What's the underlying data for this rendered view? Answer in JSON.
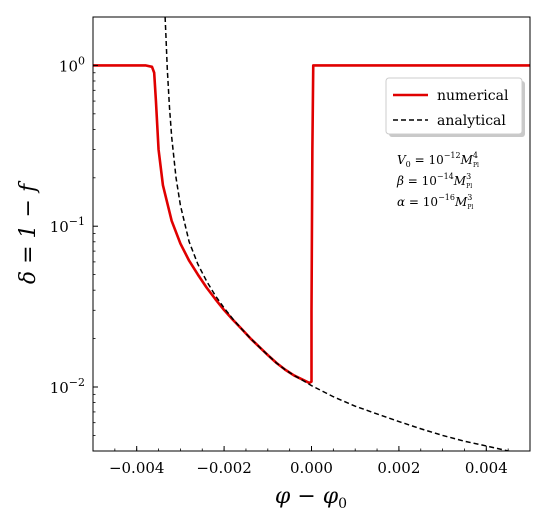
{
  "chart_data": {
    "type": "line",
    "xlabel": "φ − φ",
    "xlabel_sub": "0",
    "ylabel": "δ = 1 − f",
    "xlim": [
      -0.005,
      0.005
    ],
    "ylim": [
      0.004,
      2.0
    ],
    "yscale": "log",
    "x_ticks": [
      -0.004,
      -0.002,
      0.0,
      0.002,
      0.004
    ],
    "x_tick_labels": [
      "−0.004",
      "−0.002",
      "0.000",
      "0.002",
      "0.004"
    ],
    "y_ticks": [
      {
        "value": 1.0,
        "base": "10",
        "exp": "0"
      },
      {
        "value": 0.1,
        "base": "10",
        "exp": "−1"
      },
      {
        "value": 0.01,
        "base": "10",
        "exp": "−2"
      }
    ],
    "grid": false,
    "legend_position": "upper-right",
    "series": [
      {
        "name": "numerical",
        "color": "#e00000",
        "style": "solid",
        "points": [
          [
            -0.005,
            1.0
          ],
          [
            -0.0038,
            1.0
          ],
          [
            -0.00365,
            0.98
          ],
          [
            -0.0036,
            0.9
          ],
          [
            -0.00356,
            0.6
          ],
          [
            -0.0035,
            0.3
          ],
          [
            -0.0034,
            0.18
          ],
          [
            -0.0032,
            0.108
          ],
          [
            -0.003,
            0.078
          ],
          [
            -0.0028,
            0.061
          ],
          [
            -0.0026,
            0.05
          ],
          [
            -0.0024,
            0.0415
          ],
          [
            -0.0022,
            0.0352
          ],
          [
            -0.002,
            0.0301
          ],
          [
            -0.0018,
            0.0262
          ],
          [
            -0.0016,
            0.023
          ],
          [
            -0.0014,
            0.0201
          ],
          [
            -0.0012,
            0.0178
          ],
          [
            -0.001,
            0.0158
          ],
          [
            -0.0008,
            0.0141
          ],
          [
            -0.0006,
            0.0128
          ],
          [
            -0.0004,
            0.0118
          ],
          [
            -0.0002,
            0.0111
          ],
          [
            -5e-05,
            0.0106
          ],
          [
            0.0,
            0.0108
          ],
          [
            0.0,
            0.03
          ],
          [
            2e-05,
            0.3
          ],
          [
            4e-05,
            1.0
          ],
          [
            0.005,
            1.0
          ]
        ]
      },
      {
        "name": "analytical",
        "color": "#000000",
        "style": "dashed",
        "points": [
          [
            -0.00335,
            2.0
          ],
          [
            -0.00333,
            1.5
          ],
          [
            -0.0033,
            0.95
          ],
          [
            -0.00325,
            0.55
          ],
          [
            -0.0032,
            0.36
          ],
          [
            -0.0031,
            0.2
          ],
          [
            -0.003,
            0.135
          ],
          [
            -0.0028,
            0.08
          ],
          [
            -0.0026,
            0.058
          ],
          [
            -0.0024,
            0.0455
          ],
          [
            -0.0022,
            0.037
          ],
          [
            -0.002,
            0.031
          ],
          [
            -0.0018,
            0.0265
          ],
          [
            -0.0016,
            0.023
          ],
          [
            -0.0014,
            0.0201
          ],
          [
            -0.0012,
            0.0178
          ],
          [
            -0.001,
            0.0158
          ],
          [
            -0.0008,
            0.0141
          ],
          [
            -0.0006,
            0.0128
          ],
          [
            -0.0004,
            0.0118
          ],
          [
            -0.0002,
            0.011
          ],
          [
            0.0,
            0.0102
          ],
          [
            0.0005,
            0.0087
          ],
          [
            0.001,
            0.0076
          ],
          [
            0.0015,
            0.0068
          ],
          [
            0.002,
            0.0061
          ],
          [
            0.0025,
            0.0055
          ],
          [
            0.003,
            0.005
          ],
          [
            0.0035,
            0.0046
          ],
          [
            0.004,
            0.0043
          ],
          [
            0.0045,
            0.004
          ],
          [
            0.005,
            0.0038
          ]
        ]
      }
    ],
    "annotations": [
      {
        "base": "V",
        "base_sub": "0",
        "eq": " = 10",
        "exp": "−12",
        "unit": "M",
        "unit_sup": "4",
        "unit_sub": "Pl"
      },
      {
        "base": "β",
        "base_sub": "",
        "eq": " = 10",
        "exp": "−14",
        "unit": "M",
        "unit_sup": "3",
        "unit_sub": "Pl"
      },
      {
        "base": "α",
        "base_sub": "",
        "eq": " = 10",
        "exp": "−16",
        "unit": "M",
        "unit_sup": "3",
        "unit_sub": "Pl"
      }
    ]
  }
}
